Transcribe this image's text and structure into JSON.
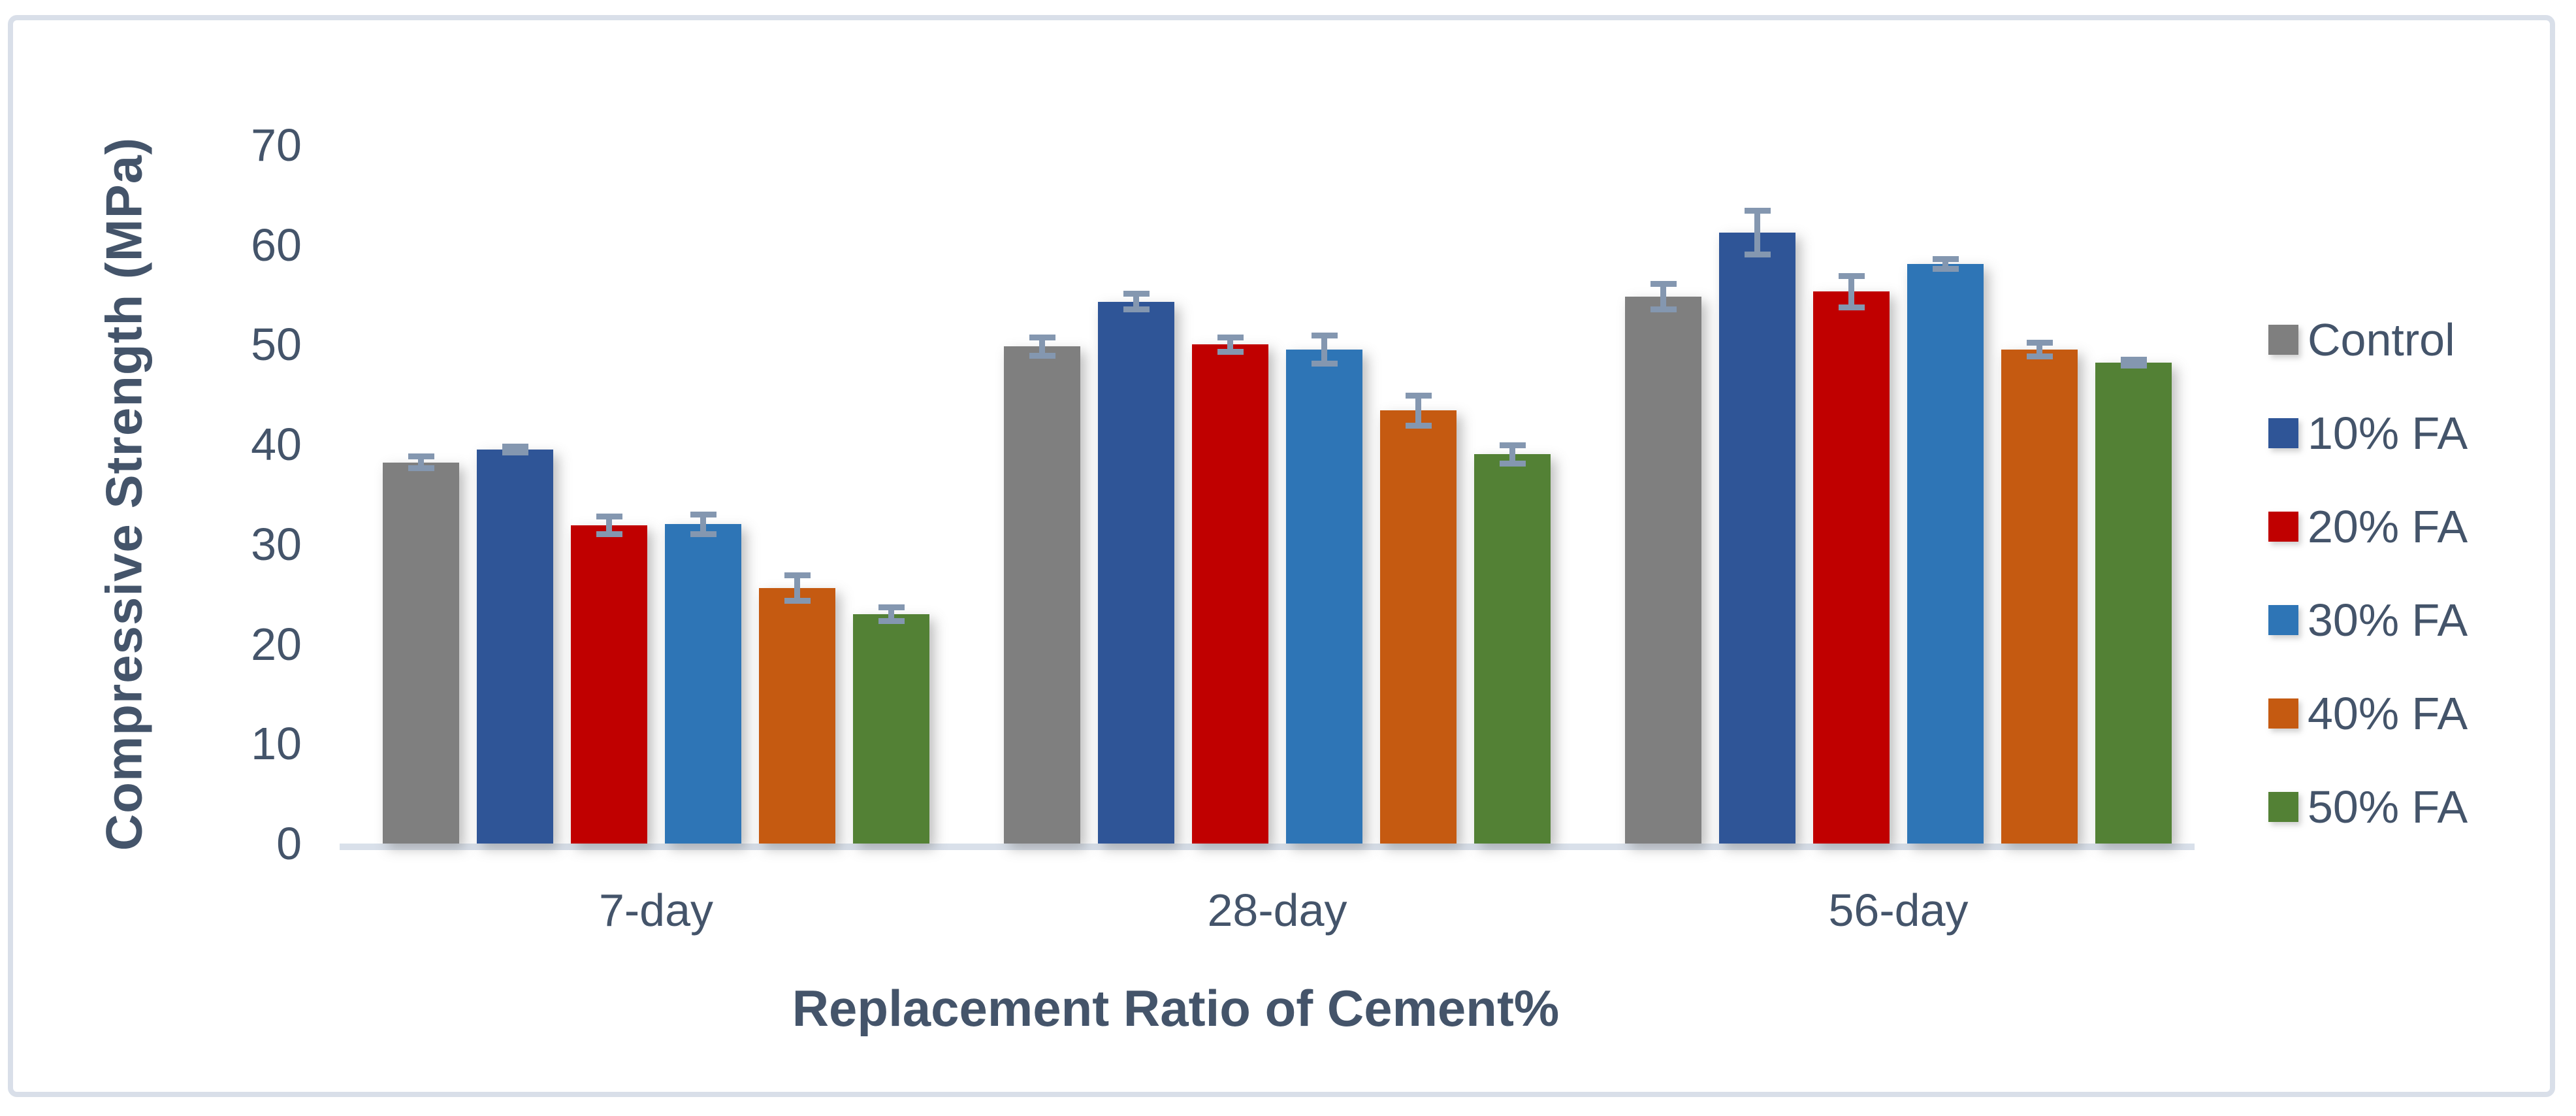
{
  "chart_data": {
    "type": "bar",
    "title": "",
    "categories": [
      "7-day",
      "28-day",
      "56-day"
    ],
    "series": [
      {
        "name": "Control",
        "color": "#7F7F7F",
        "values": [
          38.2,
          49.8,
          54.8
        ],
        "errors": [
          0.6,
          0.9,
          1.3
        ]
      },
      {
        "name": "10% FA",
        "color": "#2F5597",
        "values": [
          39.5,
          54.3,
          61.2
        ],
        "errors": [
          0.3,
          0.8,
          2.2
        ]
      },
      {
        "name": "20% FA",
        "color": "#C00000",
        "values": [
          31.9,
          50.0,
          55.3
        ],
        "errors": [
          0.9,
          0.7,
          1.6
        ]
      },
      {
        "name": "30% FA",
        "color": "#2E75B6",
        "values": [
          32.0,
          49.5,
          58.1
        ],
        "errors": [
          1.0,
          1.4,
          0.5
        ]
      },
      {
        "name": "40% FA",
        "color": "#C55A11",
        "values": [
          25.6,
          43.4,
          49.5
        ],
        "errors": [
          1.3,
          1.5,
          0.7
        ]
      },
      {
        "name": "50% FA",
        "color": "#538135",
        "values": [
          23.0,
          39.0,
          48.2
        ],
        "errors": [
          0.7,
          0.9,
          0.3
        ]
      }
    ],
    "xlabel": "Replacement Ratio of Cement%",
    "ylabel": "Compressive Strength (MPa)",
    "ylim": [
      0,
      70
    ],
    "ytick_step": 10,
    "ytick_labels": [
      "0",
      "10",
      "20",
      "30",
      "40",
      "50",
      "60",
      "70"
    ],
    "grid": false,
    "legend_position": "right",
    "error_bar_color": "#8497B0",
    "text_color": "#44546A",
    "axis_line_color": "#D9E0EA"
  }
}
